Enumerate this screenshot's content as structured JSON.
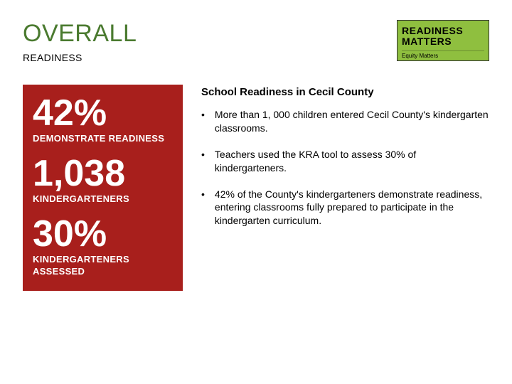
{
  "colors": {
    "title": "#4a7a2f",
    "subtitle": "#000000",
    "panel_bg": "#a81f1c",
    "logo_bg": "#8fbf3f",
    "text": "#000000",
    "bg": "#ffffff"
  },
  "header": {
    "title": "OVERALL",
    "subtitle": "READINESS"
  },
  "logo": {
    "line1": "READINESS",
    "line2": "MATTERS",
    "sub": "Equity Matters"
  },
  "stats": [
    {
      "value": "42%",
      "label": "DEMONSTRATE READINESS"
    },
    {
      "value": "1,038",
      "label": "KINDERGARTENERS"
    },
    {
      "value": "30%",
      "label": "KINDERGARTENERS ASSESSED"
    }
  ],
  "main": {
    "heading": "School Readiness in Cecil County",
    "bullets": [
      "More than 1, 000 children entered Cecil County's kindergarten classrooms.",
      "Teachers used the KRA tool to assess 30% of kindergarteners.",
      "42% of the County's kindergarteners demonstrate readiness, entering classrooms fully prepared to participate in the kindergarten curriculum."
    ]
  }
}
